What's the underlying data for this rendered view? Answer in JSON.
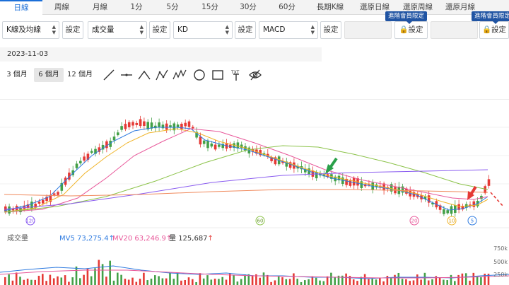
{
  "tabs": [
    "日線",
    "周線",
    "月線",
    "1分",
    "5分",
    "15分",
    "30分",
    "60分",
    "長期K線",
    "還原日線",
    "還原周線",
    "還原月線"
  ],
  "indicators": [
    {
      "label": "K線及均線",
      "button": "設定"
    },
    {
      "label": "成交量",
      "button": "設定"
    },
    {
      "label": "KD",
      "button": "設定"
    },
    {
      "label": "MACD",
      "button": "設定"
    }
  ],
  "locked_slots": [
    {
      "badge": "進階會員限定",
      "button": "設定"
    },
    {
      "badge": "進階會員限定",
      "button": "設定"
    }
  ],
  "date": "2023-11-03",
  "periods": [
    "3 個月",
    "6 個月",
    "12 個月"
  ],
  "tools": [
    "line-tool-icon",
    "horizontal-line-tool-icon",
    "angle-tool-icon",
    "pattern-abc-tool-icon",
    "wave-tool-icon",
    "circle-tool-icon",
    "rectangle-tool-icon",
    "text-tool-icon",
    "hide-drawings-icon"
  ],
  "markers": [
    "120",
    "60",
    "20",
    "10",
    "5"
  ],
  "volume": {
    "title": "成交量",
    "mv5_label": "MV5",
    "mv5_value": "73,275.4",
    "mv5_arrow": "↑",
    "mv20_label": "MV20",
    "mv20_value": "63,246.9",
    "mv20_arrow": "↑",
    "qty_label": "量",
    "qty_value": "125,687",
    "qty_arrow": "↑",
    "ticks": [
      "750k",
      "500k",
      "250k"
    ]
  },
  "colors": {
    "up": "#e53935",
    "down": "#43a047",
    "ma5": "#2f7be0",
    "ma10": "#f0b429",
    "ma20": "#e8589a",
    "ma60": "#8cc34a",
    "ma120": "#8a5cf0",
    "ma240": "#f08a5d",
    "accent": "#1b6fd8",
    "badge": "#2054a3"
  }
}
